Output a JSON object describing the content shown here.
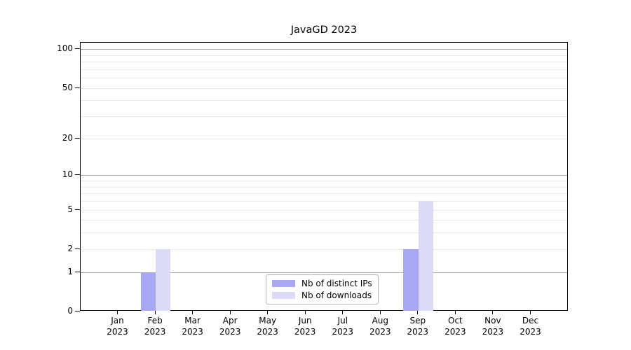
{
  "chart_data": {
    "type": "bar",
    "title": "JavaGD 2023",
    "categories": [
      "Jan 2023",
      "Feb 2023",
      "Mar 2023",
      "Apr 2023",
      "May 2023",
      "Jun 2023",
      "Jul 2023",
      "Aug 2023",
      "Sep 2023",
      "Oct 2023",
      "Nov 2023",
      "Dec 2023"
    ],
    "series": [
      {
        "name": "Nb of distinct IPs",
        "color": "#a7a7f4",
        "values": [
          0,
          1,
          0,
          0,
          0,
          0,
          0,
          0,
          2,
          0,
          0,
          0
        ]
      },
      {
        "name": "Nb of downloads",
        "color": "#dbdbf8",
        "values": [
          0,
          2,
          0,
          0,
          0,
          0,
          0,
          0,
          6,
          0,
          0,
          0
        ]
      }
    ],
    "yscale": "log1p",
    "ylim": [
      0,
      112
    ],
    "y_major_ticks": [
      0,
      1,
      2,
      5,
      10,
      20,
      50,
      100
    ],
    "y_minor_gridlines": [
      3,
      4,
      6,
      7,
      8,
      9,
      30,
      40,
      60,
      70,
      80,
      90
    ],
    "y_decade_lines": [
      1,
      10,
      100
    ],
    "grid": true,
    "legend_position": "bottom-center",
    "colors": {
      "decade_grid": "#ababab",
      "minor_grid": "#e8e8e8",
      "axis": "#000000",
      "background": "#ffffff"
    }
  }
}
